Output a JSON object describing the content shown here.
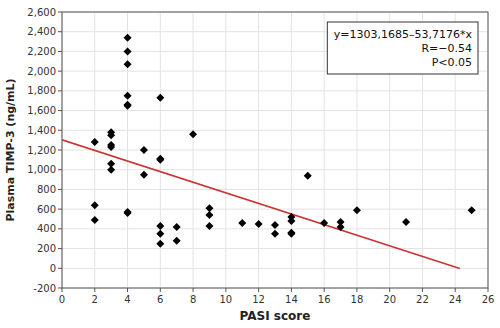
{
  "chart_data": {
    "type": "scatter",
    "xlabel": "PASI score",
    "ylabel": "Plasma TIMP-3 (ng/mL)",
    "annotations": [
      "y=1303,1685–53,7176*x",
      "R=−0.54",
      "P<0.05"
    ],
    "series": [
      {
        "type": "scatter",
        "color": "#000000",
        "marker": "diamond",
        "x": [
          2,
          2,
          2,
          3,
          3,
          3,
          3,
          3,
          3,
          4,
          4,
          4,
          4,
          4,
          4,
          4,
          4,
          5,
          5,
          6,
          6,
          6,
          6,
          6,
          6,
          7,
          7,
          8,
          9,
          9,
          9,
          11,
          12,
          13,
          13,
          14,
          14,
          14,
          14,
          15,
          16,
          17,
          17,
          18,
          21,
          25
        ],
        "values": [
          1280,
          490,
          640,
          1350,
          1380,
          1230,
          1250,
          1060,
          1000,
          1750,
          2070,
          2340,
          2200,
          1650,
          1660,
          570,
          560,
          1200,
          950,
          1730,
          1100,
          1110,
          430,
          350,
          250,
          420,
          280,
          1360,
          540,
          610,
          430,
          460,
          450,
          440,
          350,
          360,
          350,
          480,
          520,
          940,
          460,
          420,
          470,
          590,
          470,
          590
        ]
      },
      {
        "type": "line",
        "color": "#cc3333",
        "line_style": "solid",
        "x": [
          0,
          24.28
        ],
        "values": [
          1303.1685,
          -1.094828
        ]
      }
    ],
    "xlim": [
      0,
      26
    ],
    "ylim": [
      -200,
      2600
    ],
    "xticks": [
      0,
      2,
      4,
      6,
      8,
      10,
      12,
      14,
      16,
      18,
      20,
      22,
      24,
      26
    ],
    "yticks": [
      -200,
      0,
      200,
      400,
      600,
      800,
      {
        "value": 1000,
        "label": "1,000"
      },
      {
        "value": 1200,
        "label": "1,200"
      },
      {
        "value": 1400,
        "label": "1,400"
      },
      {
        "value": 1600,
        "label": "1,600"
      },
      {
        "value": 1800,
        "label": "1,800"
      },
      {
        "value": 2000,
        "label": "2,000"
      },
      {
        "value": 2200,
        "label": "2,200"
      },
      {
        "value": 2400,
        "label": "2,400"
      },
      {
        "value": 2600,
        "label": "2,600"
      }
    ],
    "grid": true
  }
}
